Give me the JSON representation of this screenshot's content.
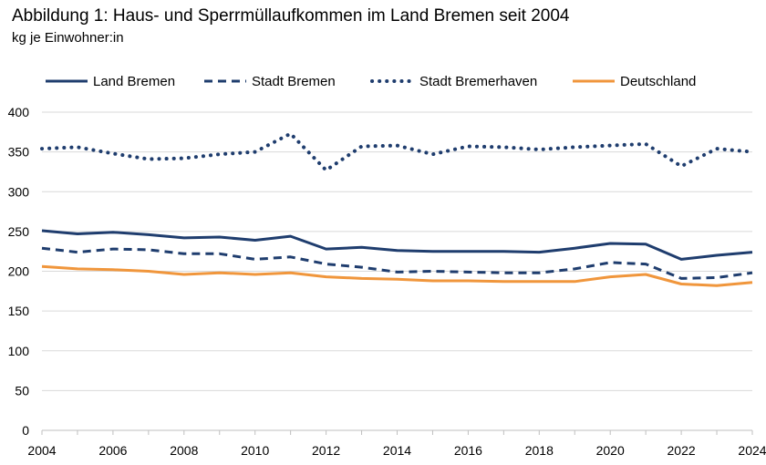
{
  "chart_data": {
    "type": "line",
    "title": "Abbildung 1: Haus- und Sperrmüllaufkommen im Land Bremen seit 2004",
    "subtitle": "kg je Einwohner:in",
    "xlabel": "",
    "ylabel": "",
    "ylim": [
      0,
      400
    ],
    "yticks": [
      0,
      50,
      100,
      150,
      200,
      250,
      300,
      350,
      400
    ],
    "xticks": [
      2004,
      2006,
      2008,
      2010,
      2012,
      2014,
      2016,
      2018,
      2020,
      2022,
      2024
    ],
    "grid": true,
    "legend_position": "top",
    "x": [
      2004,
      2005,
      2006,
      2007,
      2008,
      2009,
      2010,
      2011,
      2012,
      2013,
      2014,
      2015,
      2016,
      2017,
      2018,
      2019,
      2020,
      2021,
      2022,
      2023,
      2024
    ],
    "series": [
      {
        "name": "Land Bremen",
        "color": "#1f3d6e",
        "style": "solid",
        "values": [
          251,
          247,
          249,
          246,
          242,
          243,
          239,
          244,
          228,
          230,
          226,
          225,
          225,
          225,
          224,
          229,
          235,
          234,
          215,
          220,
          224
        ]
      },
      {
        "name": "Stadt Bremen",
        "color": "#1f3d6e",
        "style": "dashed",
        "values": [
          229,
          224,
          228,
          227,
          222,
          222,
          215,
          218,
          209,
          205,
          199,
          200,
          199,
          198,
          198,
          203,
          211,
          209,
          191,
          192,
          198
        ]
      },
      {
        "name": "Stadt Bremerhaven",
        "color": "#1f3d6e",
        "style": "dotted",
        "values": [
          354,
          356,
          348,
          341,
          342,
          347,
          350,
          373,
          327,
          357,
          358,
          347,
          357,
          356,
          353,
          356,
          358,
          360,
          332,
          354,
          350
        ]
      },
      {
        "name": "Deutschland",
        "color": "#f0963c",
        "style": "solid",
        "values": [
          206,
          203,
          202,
          200,
          196,
          198,
          196,
          198,
          193,
          191,
          190,
          188,
          188,
          187,
          187,
          187,
          193,
          196,
          184,
          182,
          186
        ]
      }
    ]
  }
}
